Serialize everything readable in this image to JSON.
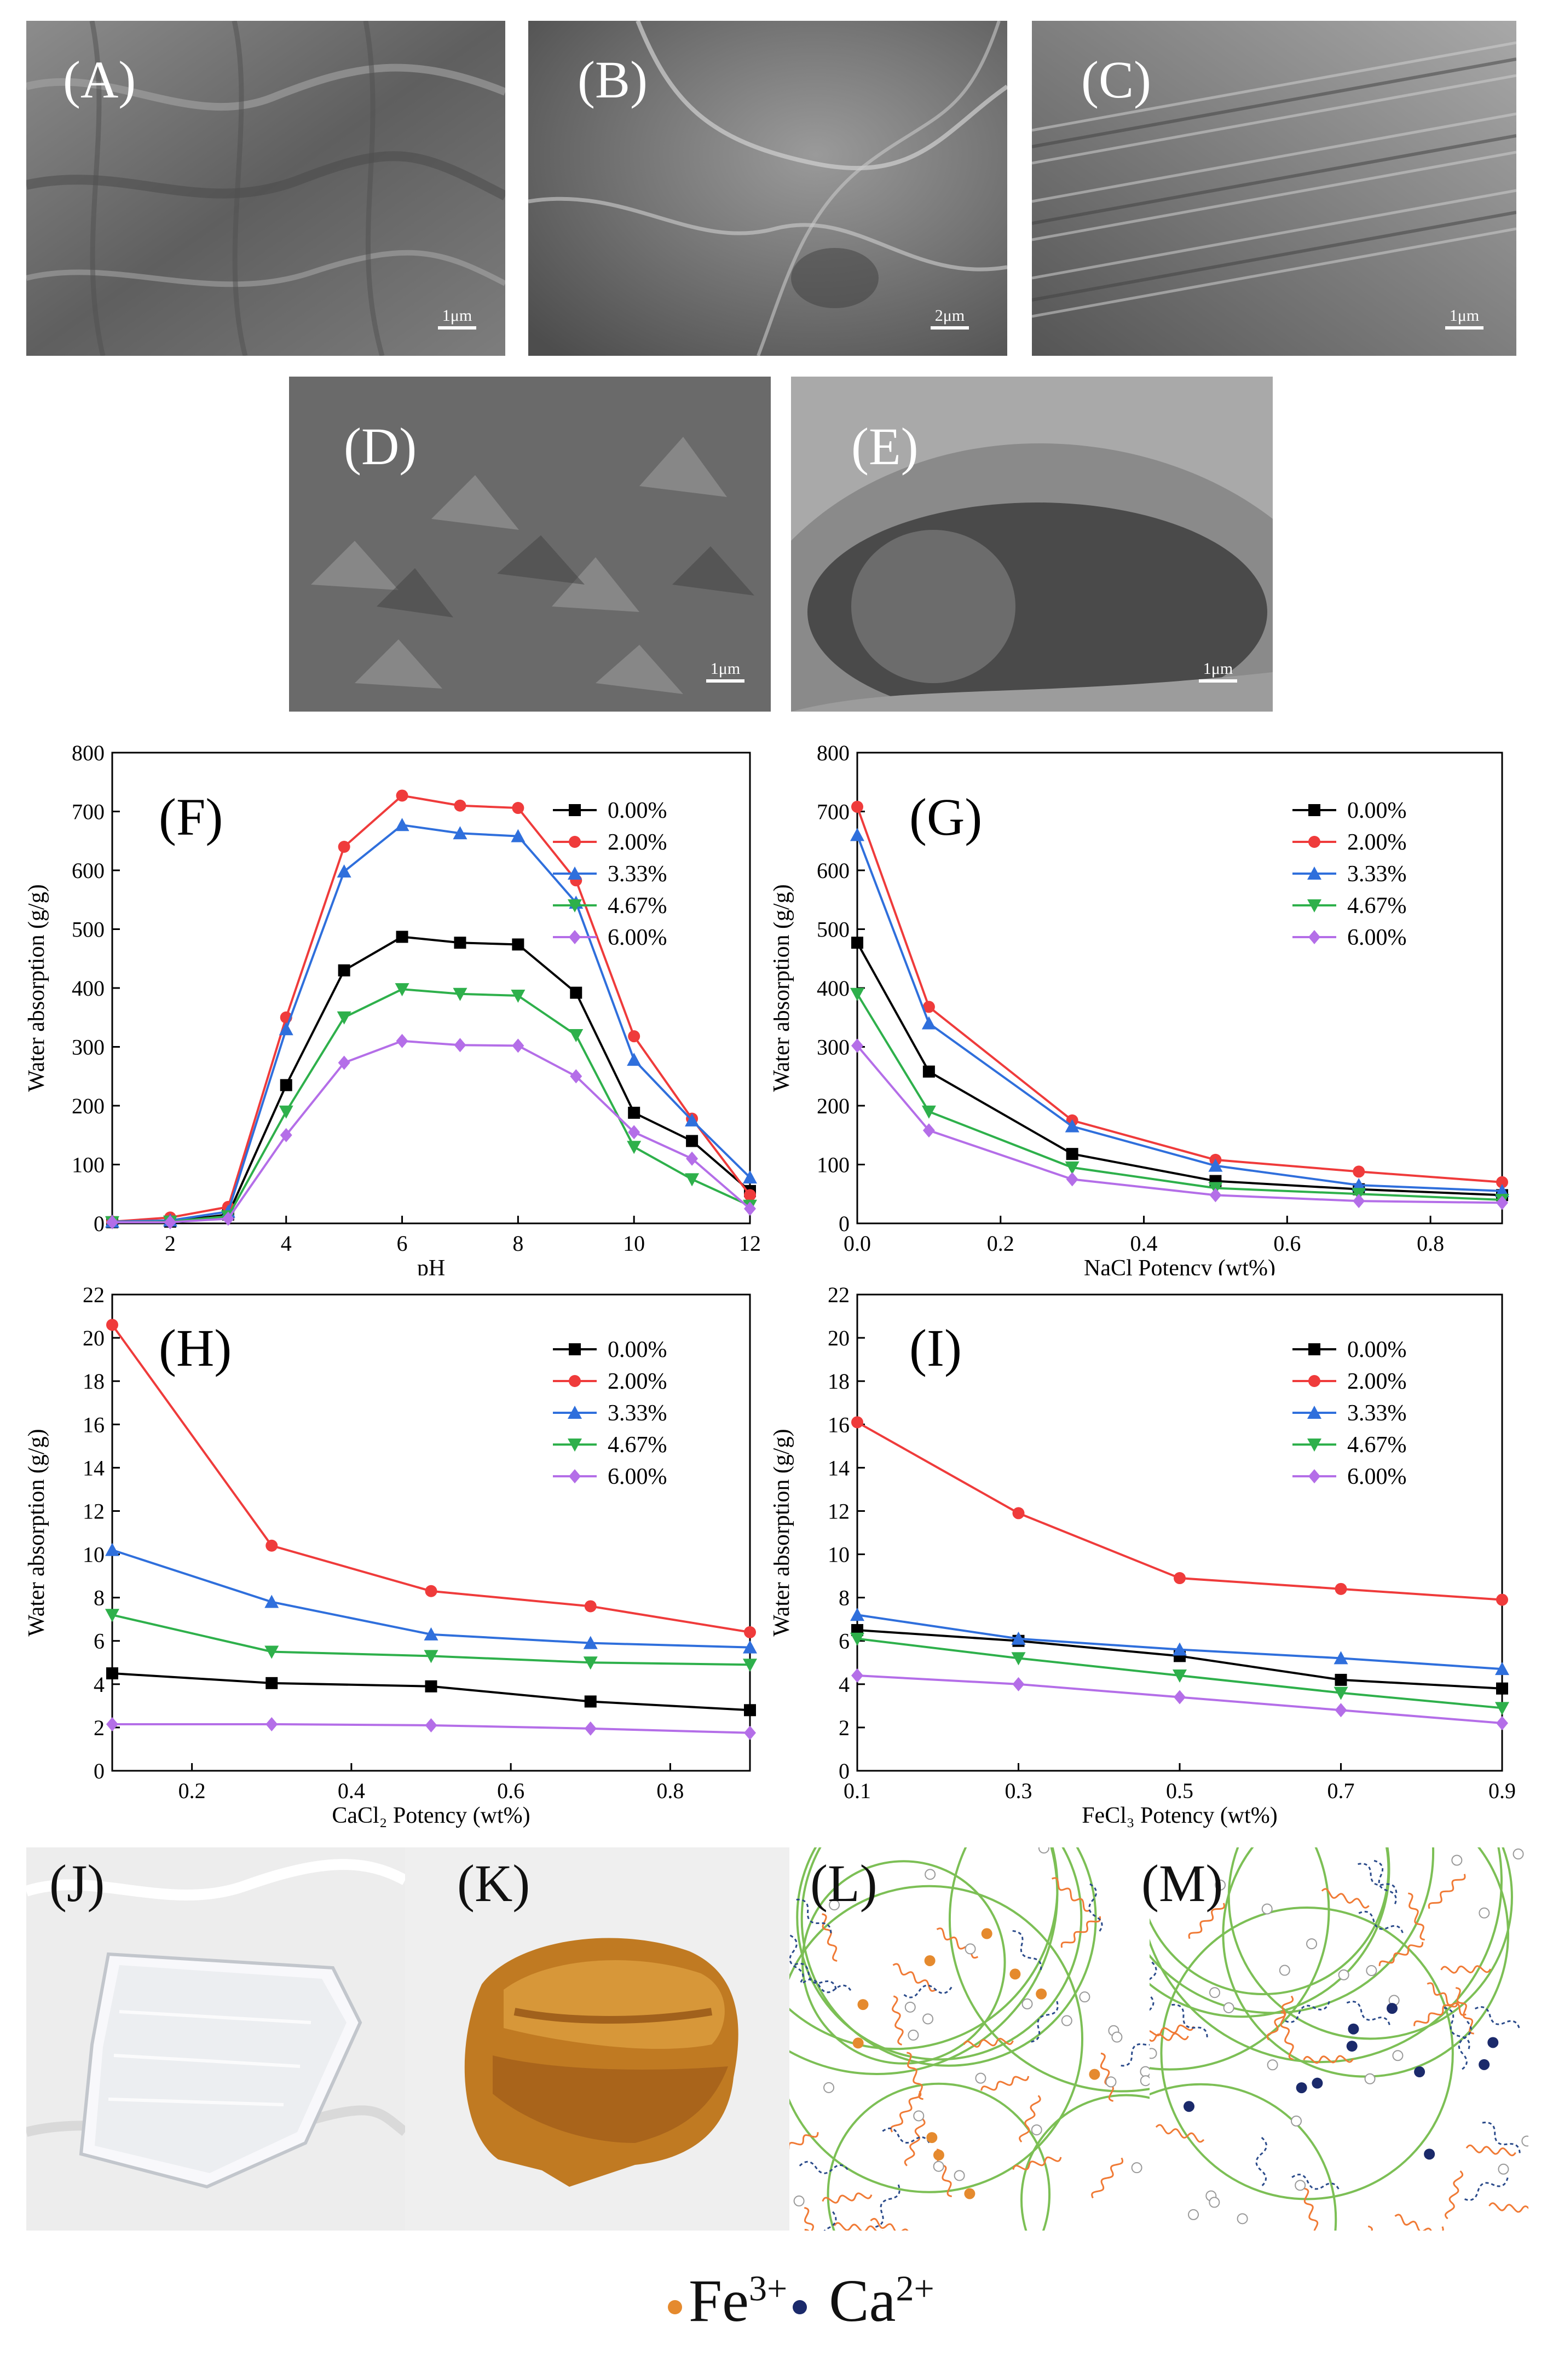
{
  "sem_panels": [
    {
      "label": "(A)",
      "scale": "1μm"
    },
    {
      "label": "(B)",
      "scale": "2μm"
    },
    {
      "label": "(C)",
      "scale": "1μm"
    },
    {
      "label": "(D)",
      "scale": "1μm"
    },
    {
      "label": "(E)",
      "scale": "1μm"
    }
  ],
  "photo_panels": [
    {
      "label": "(J)"
    },
    {
      "label": "(K)"
    },
    {
      "label": "(L)"
    },
    {
      "label": "(M)"
    }
  ],
  "ion_legend": {
    "fe_label": "Fe",
    "fe_charge": "3+",
    "ca_label": "Ca",
    "ca_charge": "2+",
    "fe_color": "#e58a2e",
    "ca_color": "#1b2a6b"
  },
  "series_colors": [
    "#000000",
    "#ef3b3b",
    "#2f6fdc",
    "#2eb04b",
    "#b46ee8"
  ],
  "series_markers": [
    "square",
    "circle",
    "triangle-up",
    "triangle-down",
    "diamond"
  ],
  "chart_data": [
    {
      "type": "line",
      "panel": "(F)",
      "xlabel": "pH",
      "ylabel": "Water absorption (g/g)",
      "xlim": [
        1,
        12
      ],
      "ylim": [
        0,
        800
      ],
      "xticks": [
        2,
        4,
        6,
        8,
        10,
        12
      ],
      "yticks": [
        0,
        100,
        200,
        300,
        400,
        500,
        600,
        700,
        800
      ],
      "x": [
        1,
        2,
        3,
        4,
        5,
        6,
        7,
        8,
        9,
        10,
        11,
        12
      ],
      "series": [
        {
          "name": "0.00%",
          "values": [
            2,
            3,
            15,
            235,
            430,
            487,
            477,
            474,
            392,
            188,
            140,
            55
          ]
        },
        {
          "name": "2.00%",
          "values": [
            3,
            10,
            28,
            350,
            640,
            727,
            710,
            706,
            583,
            318,
            178,
            48
          ]
        },
        {
          "name": "3.33%",
          "values": [
            3,
            5,
            20,
            330,
            598,
            677,
            663,
            658,
            545,
            278,
            175,
            78
          ]
        },
        {
          "name": "4.67%",
          "values": [
            2,
            3,
            12,
            190,
            350,
            398,
            390,
            387,
            320,
            130,
            75,
            30
          ]
        },
        {
          "name": "6.00%",
          "values": [
            2,
            2,
            8,
            150,
            273,
            310,
            303,
            302,
            250,
            155,
            110,
            25
          ]
        }
      ]
    },
    {
      "type": "line",
      "panel": "(G)",
      "xlabel": "NaCl Potency (wt%)",
      "ylabel": "Water absorption (g/g)",
      "xlim": [
        0,
        0.9
      ],
      "ylim": [
        0,
        800
      ],
      "xticks": [
        0.0,
        0.2,
        0.4,
        0.6,
        0.8
      ],
      "xticklabels": [
        "0.0",
        "0.2",
        "0.4",
        "0.6",
        "0.8"
      ],
      "yticks": [
        0,
        100,
        200,
        300,
        400,
        500,
        600,
        700,
        800
      ],
      "x": [
        0,
        0.1,
        0.3,
        0.5,
        0.7,
        0.9
      ],
      "series": [
        {
          "name": "0.00%",
          "values": [
            477,
            258,
            118,
            72,
            58,
            48
          ]
        },
        {
          "name": "2.00%",
          "values": [
            708,
            368,
            175,
            108,
            88,
            70
          ]
        },
        {
          "name": "3.33%",
          "values": [
            660,
            340,
            165,
            98,
            65,
            55
          ]
        },
        {
          "name": "4.67%",
          "values": [
            390,
            190,
            95,
            60,
            50,
            40
          ]
        },
        {
          "name": "6.00%",
          "values": [
            302,
            158,
            75,
            48,
            38,
            35
          ]
        }
      ]
    },
    {
      "type": "line",
      "panel": "(H)",
      "xlabel": "CaCl₂ Potency (wt%)",
      "ylabel": "Water absorption (g/g)",
      "xlim": [
        0.1,
        0.9
      ],
      "ylim": [
        0,
        22
      ],
      "xticks": [
        0.2,
        0.4,
        0.6,
        0.8
      ],
      "xticklabels": [
        "0.2",
        "0.4",
        "0.6",
        "0.8"
      ],
      "yticks": [
        0,
        2,
        4,
        6,
        8,
        10,
        12,
        14,
        16,
        18,
        20,
        22
      ],
      "x": [
        0.1,
        0.3,
        0.5,
        0.7,
        0.9
      ],
      "series": [
        {
          "name": "0.00%",
          "values": [
            4.5,
            4.05,
            3.9,
            3.2,
            2.8
          ]
        },
        {
          "name": "2.00%",
          "values": [
            20.6,
            10.4,
            8.3,
            7.6,
            6.4
          ]
        },
        {
          "name": "3.33%",
          "values": [
            10.2,
            7.8,
            6.3,
            5.9,
            5.7
          ]
        },
        {
          "name": "4.67%",
          "values": [
            7.2,
            5.5,
            5.3,
            5.0,
            4.9
          ]
        },
        {
          "name": "6.00%",
          "values": [
            2.15,
            2.15,
            2.1,
            1.95,
            1.75
          ]
        }
      ]
    },
    {
      "type": "line",
      "panel": "(I)",
      "xlabel": "FeCl₃ Potency (wt%)",
      "ylabel": "Water absorption (g/g)",
      "xlim": [
        0.1,
        0.9
      ],
      "ylim": [
        0,
        22
      ],
      "xticks": [
        0.1,
        0.3,
        0.5,
        0.7,
        0.9
      ],
      "xticklabels": [
        "0.1",
        "0.3",
        "0.5",
        "0.7",
        "0.9"
      ],
      "yticks": [
        0,
        2,
        4,
        6,
        8,
        10,
        12,
        14,
        16,
        18,
        20,
        22
      ],
      "x": [
        0.1,
        0.3,
        0.5,
        0.7,
        0.9
      ],
      "series": [
        {
          "name": "0.00%",
          "values": [
            6.5,
            6.0,
            5.3,
            4.2,
            3.8
          ]
        },
        {
          "name": "2.00%",
          "values": [
            16.1,
            11.9,
            8.9,
            8.4,
            7.9
          ]
        },
        {
          "name": "3.33%",
          "values": [
            7.2,
            6.1,
            5.6,
            5.2,
            4.7
          ]
        },
        {
          "name": "4.67%",
          "values": [
            6.1,
            5.2,
            4.4,
            3.6,
            2.9
          ]
        },
        {
          "name": "6.00%",
          "values": [
            4.4,
            4.0,
            3.4,
            2.8,
            2.2
          ]
        }
      ]
    }
  ]
}
